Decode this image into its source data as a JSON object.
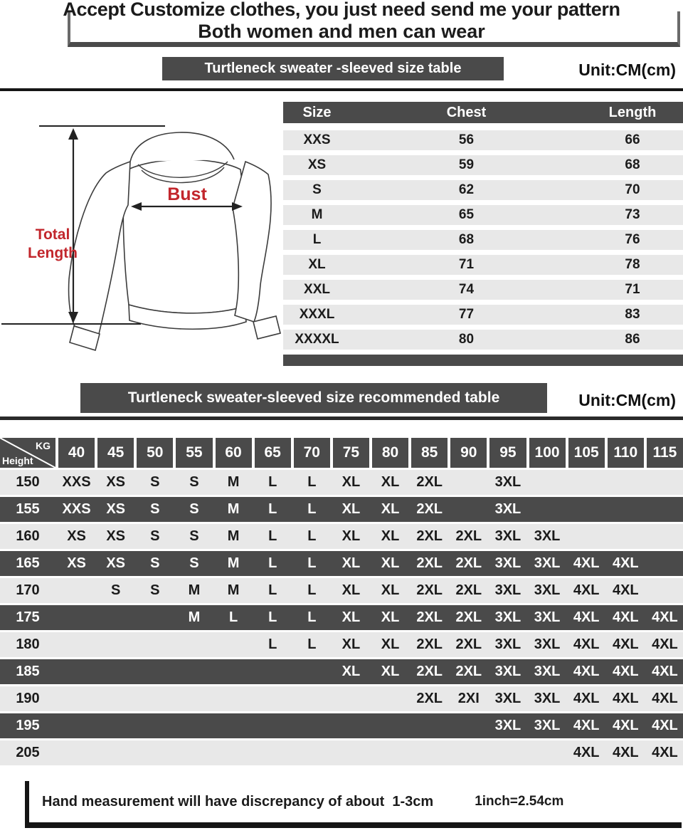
{
  "header": {
    "line1": "Accept Customize clothes, you just need send me your pattern",
    "line2": "Both women and men can wear"
  },
  "size_table_section": {
    "bar_title": "Turtleneck sweater -sleeved size  table",
    "unit": "Unit:CM(cm)"
  },
  "diagram": {
    "bust_label": "Bust",
    "total_length_line1": "Total",
    "total_length_line2": "Length"
  },
  "size_table": {
    "columns": [
      "Size",
      "Chest",
      "Length"
    ],
    "rows": [
      {
        "size": "XXS",
        "chest": "56",
        "length": "66"
      },
      {
        "size": "XS",
        "chest": "59",
        "length": "68"
      },
      {
        "size": "S",
        "chest": "62",
        "length": "70"
      },
      {
        "size": "M",
        "chest": "65",
        "length": "73"
      },
      {
        "size": "L",
        "chest": "68",
        "length": "76"
      },
      {
        "size": "XL",
        "chest": "71",
        "length": "78"
      },
      {
        "size": "XXL",
        "chest": "74",
        "length": "71"
      },
      {
        "size": "XXXL",
        "chest": "77",
        "length": "83"
      },
      {
        "size": "XXXXL",
        "chest": "80",
        "length": "86"
      }
    ]
  },
  "recommend_section": {
    "bar_title": "Turtleneck sweater-sleeved size recommended table",
    "unit": "Unit:CM(cm)"
  },
  "matrix": {
    "corner_top_right": "KG",
    "corner_bottom_left": "Height",
    "kg_columns": [
      "40",
      "45",
      "50",
      "55",
      "60",
      "65",
      "70",
      "75",
      "80",
      "85",
      "90",
      "95",
      "100",
      "105",
      "110",
      "115"
    ],
    "rows": [
      {
        "height": "150",
        "cells": [
          "XXS",
          "XS",
          "S",
          "S",
          "M",
          "L",
          "L",
          "XL",
          "XL",
          "2XL",
          "",
          "3XL",
          "",
          "",
          "",
          ""
        ]
      },
      {
        "height": "155",
        "cells": [
          "XXS",
          "XS",
          "S",
          "S",
          "M",
          "L",
          "L",
          "XL",
          "XL",
          "2XL",
          "",
          "3XL",
          "",
          "",
          "",
          ""
        ]
      },
      {
        "height": "160",
        "cells": [
          "XS",
          "XS",
          "S",
          "S",
          "M",
          "L",
          "L",
          "XL",
          "XL",
          "2XL",
          "2XL",
          "3XL",
          "3XL",
          "",
          "",
          ""
        ]
      },
      {
        "height": "165",
        "cells": [
          "XS",
          "XS",
          "S",
          "S",
          "M",
          "L",
          "L",
          "XL",
          "XL",
          "2XL",
          "2XL",
          "3XL",
          "3XL",
          "4XL",
          "4XL",
          ""
        ]
      },
      {
        "height": "170",
        "cells": [
          "",
          "S",
          "S",
          "M",
          "M",
          "L",
          "L",
          "XL",
          "XL",
          "2XL",
          "2XL",
          "3XL",
          "3XL",
          "4XL",
          "4XL",
          ""
        ]
      },
      {
        "height": "175",
        "cells": [
          "",
          "",
          "",
          "M",
          "L",
          "L",
          "L",
          "XL",
          "XL",
          "2XL",
          "2XL",
          "3XL",
          "3XL",
          "4XL",
          "4XL",
          "4XL"
        ]
      },
      {
        "height": "180",
        "cells": [
          "",
          "",
          "",
          "",
          "",
          "L",
          "L",
          "XL",
          "XL",
          "2XL",
          "2XL",
          "3XL",
          "3XL",
          "4XL",
          "4XL",
          "4XL"
        ]
      },
      {
        "height": "185",
        "cells": [
          "",
          "",
          "",
          "",
          "",
          "",
          "",
          "XL",
          "XL",
          "2XL",
          "2XL",
          "3XL",
          "3XL",
          "4XL",
          "4XL",
          "4XL"
        ]
      },
      {
        "height": "190",
        "cells": [
          "",
          "",
          "",
          "",
          "",
          "",
          "",
          "",
          "",
          "2XL",
          "2XI",
          "3XL",
          "3XL",
          "4XL",
          "4XL",
          "4XL"
        ]
      },
      {
        "height": "195",
        "cells": [
          "",
          "",
          "",
          "",
          "",
          "",
          "",
          "",
          "",
          "",
          "",
          "3XL",
          "3XL",
          "4XL",
          "4XL",
          "4XL"
        ]
      },
      {
        "height": "205",
        "cells": [
          "",
          "",
          "",
          "",
          "",
          "",
          "",
          "",
          "",
          "",
          "",
          "",
          "",
          "4XL",
          "4XL",
          "4XL"
        ]
      }
    ]
  },
  "footer": {
    "note": "Hand measurement will have discrepancy of about  1-3cm",
    "conversion": "1inch=2.54cm"
  },
  "colors": {
    "dark_bar": "#4a4a4a",
    "light_row": "#e8e8e8",
    "accent_red": "#c2262c",
    "line_black": "#151515"
  }
}
